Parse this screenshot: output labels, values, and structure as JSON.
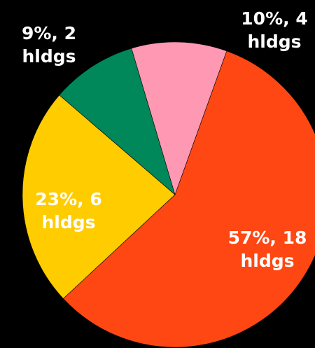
{
  "chart_data": {
    "type": "pie",
    "title": "",
    "start_angle_deg": 19.8,
    "slices": [
      {
        "label": "57%, 18 hldgs",
        "value": 57,
        "holdings": 18,
        "color": "#FF4713",
        "label_color": "#FFFFFF"
      },
      {
        "label": "23%, 6 hldgs",
        "value": 23,
        "holdings": 6,
        "color": "#FFCC00",
        "label_color": "#FFFFFF"
      },
      {
        "label": "9%, 2 hldgs",
        "value": 9,
        "holdings": 2,
        "color": "#00875A",
        "label_color": "#FFFFFF"
      },
      {
        "label": "10%, 4 hldgs",
        "value": 10,
        "holdings": 4,
        "color": "#FF99B3",
        "label_color": "#FFFFFF"
      }
    ]
  }
}
